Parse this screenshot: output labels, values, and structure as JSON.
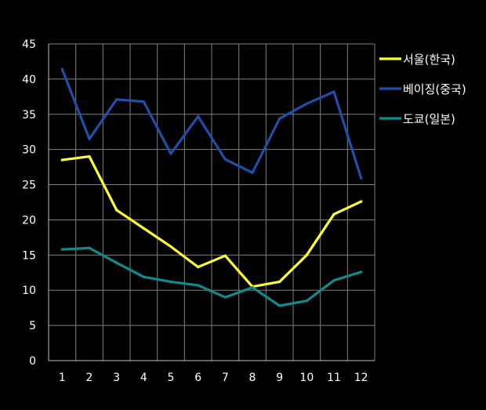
{
  "chart_data": {
    "type": "line",
    "categories": [
      "1",
      "2",
      "3",
      "4",
      "5",
      "6",
      "7",
      "8",
      "9",
      "10",
      "11",
      "12"
    ],
    "ylim": [
      0,
      45
    ],
    "yticks": [
      0,
      5,
      10,
      15,
      20,
      25,
      30,
      35,
      40,
      45
    ],
    "grid": true,
    "legend_position": "right",
    "background": "#000000",
    "series": [
      {
        "name": "서울(한국)",
        "color": "#ffff33",
        "values": [
          28.5,
          29.0,
          21.4,
          18.8,
          16.2,
          13.3,
          14.9,
          10.5,
          11.2,
          15.0,
          20.8,
          22.6
        ]
      },
      {
        "name": "베이징(중국)",
        "color": "#1f4fa8",
        "values": [
          41.4,
          31.5,
          37.1,
          36.8,
          29.4,
          34.7,
          28.6,
          26.7,
          34.4,
          36.5,
          38.2,
          25.9
        ]
      },
      {
        "name": "도쿄(일본)",
        "color": "#138a8a",
        "values": [
          15.8,
          16.0,
          13.9,
          11.9,
          11.2,
          10.7,
          9.0,
          10.4,
          7.8,
          8.5,
          11.4,
          12.6
        ]
      }
    ]
  }
}
